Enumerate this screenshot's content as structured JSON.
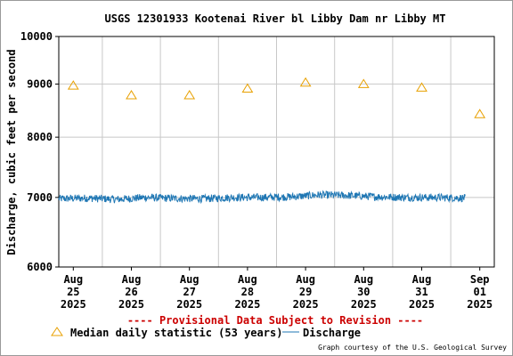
{
  "chart_data": {
    "type": "line",
    "title": "USGS 12301933 Kootenai River bl Libby Dam nr Libby MT",
    "ylabel": "Discharge, cubic feet per second",
    "xlabel": "",
    "y_scale": "log",
    "ylim": [
      6000,
      10000
    ],
    "y_ticks": [
      "6000",
      "7000",
      "8000",
      "9000",
      "10000"
    ],
    "y_tick_values": [
      6000,
      7000,
      8000,
      9000,
      10000
    ],
    "x_range": [
      "2025-08-24 18:00",
      "2025-09-01 06:00"
    ],
    "x_ticks": [
      {
        "date": "2025-08-25",
        "month": "Aug",
        "day": "25",
        "year": "2025"
      },
      {
        "date": "2025-08-26",
        "month": "Aug",
        "day": "26",
        "year": "2025"
      },
      {
        "date": "2025-08-27",
        "month": "Aug",
        "day": "27",
        "year": "2025"
      },
      {
        "date": "2025-08-28",
        "month": "Aug",
        "day": "28",
        "year": "2025"
      },
      {
        "date": "2025-08-29",
        "month": "Aug",
        "day": "29",
        "year": "2025"
      },
      {
        "date": "2025-08-30",
        "month": "Aug",
        "day": "30",
        "year": "2025"
      },
      {
        "date": "2025-08-31",
        "month": "Aug",
        "day": "31",
        "year": "2025"
      },
      {
        "date": "2025-09-01",
        "month": "Sep",
        "day": "01",
        "year": "2025"
      }
    ],
    "grid": true,
    "series": [
      {
        "name": "Median daily statistic (53 years)",
        "marker": "triangle",
        "color": "#e8a000",
        "x": [
          "2025-08-25",
          "2025-08-26",
          "2025-08-27",
          "2025-08-28",
          "2025-08-29",
          "2025-08-30",
          "2025-08-31",
          "2025-09-01"
        ],
        "values": [
          8970,
          8780,
          8780,
          8910,
          9030,
          9000,
          8930,
          8420
        ]
      },
      {
        "name": "Discharge",
        "marker": "line",
        "color": "#1f77b4",
        "x": [
          "2025-08-24 18:00",
          "2025-08-25 06:00",
          "2025-08-25 18:00",
          "2025-08-26 06:00",
          "2025-08-26 18:00",
          "2025-08-27 06:00",
          "2025-08-27 18:00",
          "2025-08-28 06:00",
          "2025-08-28 18:00",
          "2025-08-29 06:00",
          "2025-08-29 18:00",
          "2025-08-30 06:00",
          "2025-08-30 18:00",
          "2025-08-31 06:00",
          "2025-08-31 18:00"
        ],
        "values": [
          6980,
          6990,
          6970,
          7000,
          6985,
          6980,
          7000,
          7000,
          7010,
          7040,
          7030,
          7010,
          7000,
          7000,
          6990
        ],
        "noise_band": 60
      }
    ],
    "annotation": "---- Provisional Data Subject to Revision ----",
    "credit": "Graph courtesy of the U.S. Geological Survey",
    "legend_placement": "bottom"
  }
}
